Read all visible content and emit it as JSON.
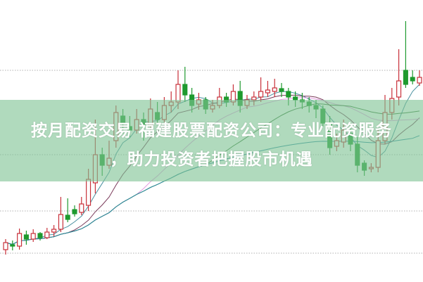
{
  "title": {
    "line1": "按月配资交易 福建股票配资公司：专业配资服务",
    "line2": "，助力投资者把握股市机遇"
  },
  "colors": {
    "up": "#c8303a",
    "down": "#1e9a2e",
    "banner": "#80c494",
    "grid": "#b0b0b0"
  },
  "chart_data": {
    "type": "candlestick",
    "title": "",
    "xlabel": "",
    "ylabel": "",
    "grid": "horizontal dotted",
    "gridlines": [
      40,
      100,
      180,
      300
    ],
    "ylim": [
      0,
      400
    ],
    "candles_ohlc": [
      [
        45,
        60,
        38,
        55
      ],
      [
        52,
        58,
        44,
        50
      ],
      [
        50,
        75,
        45,
        68
      ],
      [
        66,
        72,
        52,
        60
      ],
      [
        60,
        74,
        56,
        68
      ],
      [
        68,
        70,
        58,
        62
      ],
      [
        62,
        76,
        60,
        70
      ],
      [
        70,
        80,
        64,
        74
      ],
      [
        74,
        120,
        70,
        95
      ],
      [
        94,
        118,
        84,
        88
      ],
      [
        102,
        108,
        92,
        96
      ],
      [
        98,
        120,
        94,
        110
      ],
      [
        108,
        160,
        100,
        145
      ],
      [
        140,
        230,
        125,
        180
      ],
      [
        180,
        190,
        150,
        165
      ],
      [
        165,
        200,
        160,
        175
      ],
      [
        200,
        250,
        190,
        240
      ],
      [
        235,
        245,
        210,
        225
      ],
      [
        220,
        235,
        205,
        215
      ],
      [
        215,
        245,
        210,
        230
      ],
      [
        230,
        240,
        200,
        222
      ],
      [
        222,
        260,
        215,
        245
      ],
      [
        240,
        255,
        225,
        230
      ],
      [
        230,
        262,
        226,
        250
      ],
      [
        250,
        270,
        240,
        255
      ],
      [
        255,
        300,
        245,
        280
      ],
      [
        280,
        305,
        255,
        265
      ],
      [
        265,
        275,
        240,
        250
      ],
      [
        252,
        268,
        244,
        258
      ],
      [
        258,
        262,
        238,
        245
      ],
      [
        245,
        258,
        240,
        250
      ],
      [
        250,
        275,
        246,
        262
      ],
      [
        262,
        268,
        248,
        255
      ],
      [
        255,
        280,
        250,
        270
      ],
      [
        270,
        285,
        240,
        250
      ],
      [
        250,
        265,
        245,
        258
      ],
      [
        258,
        270,
        250,
        262
      ],
      [
        262,
        290,
        255,
        270
      ],
      [
        268,
        285,
        262,
        272
      ],
      [
        270,
        288,
        262,
        275
      ],
      [
        274,
        282,
        262,
        270
      ],
      [
        270,
        275,
        250,
        262
      ],
      [
        262,
        270,
        248,
        258
      ],
      [
        258,
        268,
        245,
        255
      ],
      [
        255,
        262,
        240,
        250
      ],
      [
        250,
        258,
        232,
        245
      ],
      [
        245,
        250,
        220,
        225
      ],
      [
        225,
        235,
        180,
        190
      ],
      [
        192,
        210,
        185,
        200
      ],
      [
        198,
        230,
        190,
        215
      ],
      [
        210,
        225,
        185,
        195
      ],
      [
        195,
        205,
        155,
        165
      ],
      [
        168,
        172,
        150,
        158
      ],
      [
        160,
        168,
        155,
        162
      ],
      [
        162,
        215,
        155,
        200
      ],
      [
        200,
        265,
        195,
        240
      ],
      [
        240,
        275,
        230,
        260
      ],
      [
        262,
        330,
        250,
        285
      ],
      [
        300,
        370,
        275,
        280
      ],
      [
        290,
        300,
        280,
        285
      ],
      [
        282,
        300,
        278,
        290
      ]
    ],
    "moving_averages": [
      {
        "period": 5,
        "color": "#4a90a0"
      },
      {
        "period": 10,
        "color": "#7a3a5a"
      },
      {
        "period": 20,
        "color": "#e59be0"
      },
      {
        "period": 30,
        "color": "#3a7a3a"
      },
      {
        "period": 60,
        "color": "#2a8aa0"
      }
    ]
  }
}
